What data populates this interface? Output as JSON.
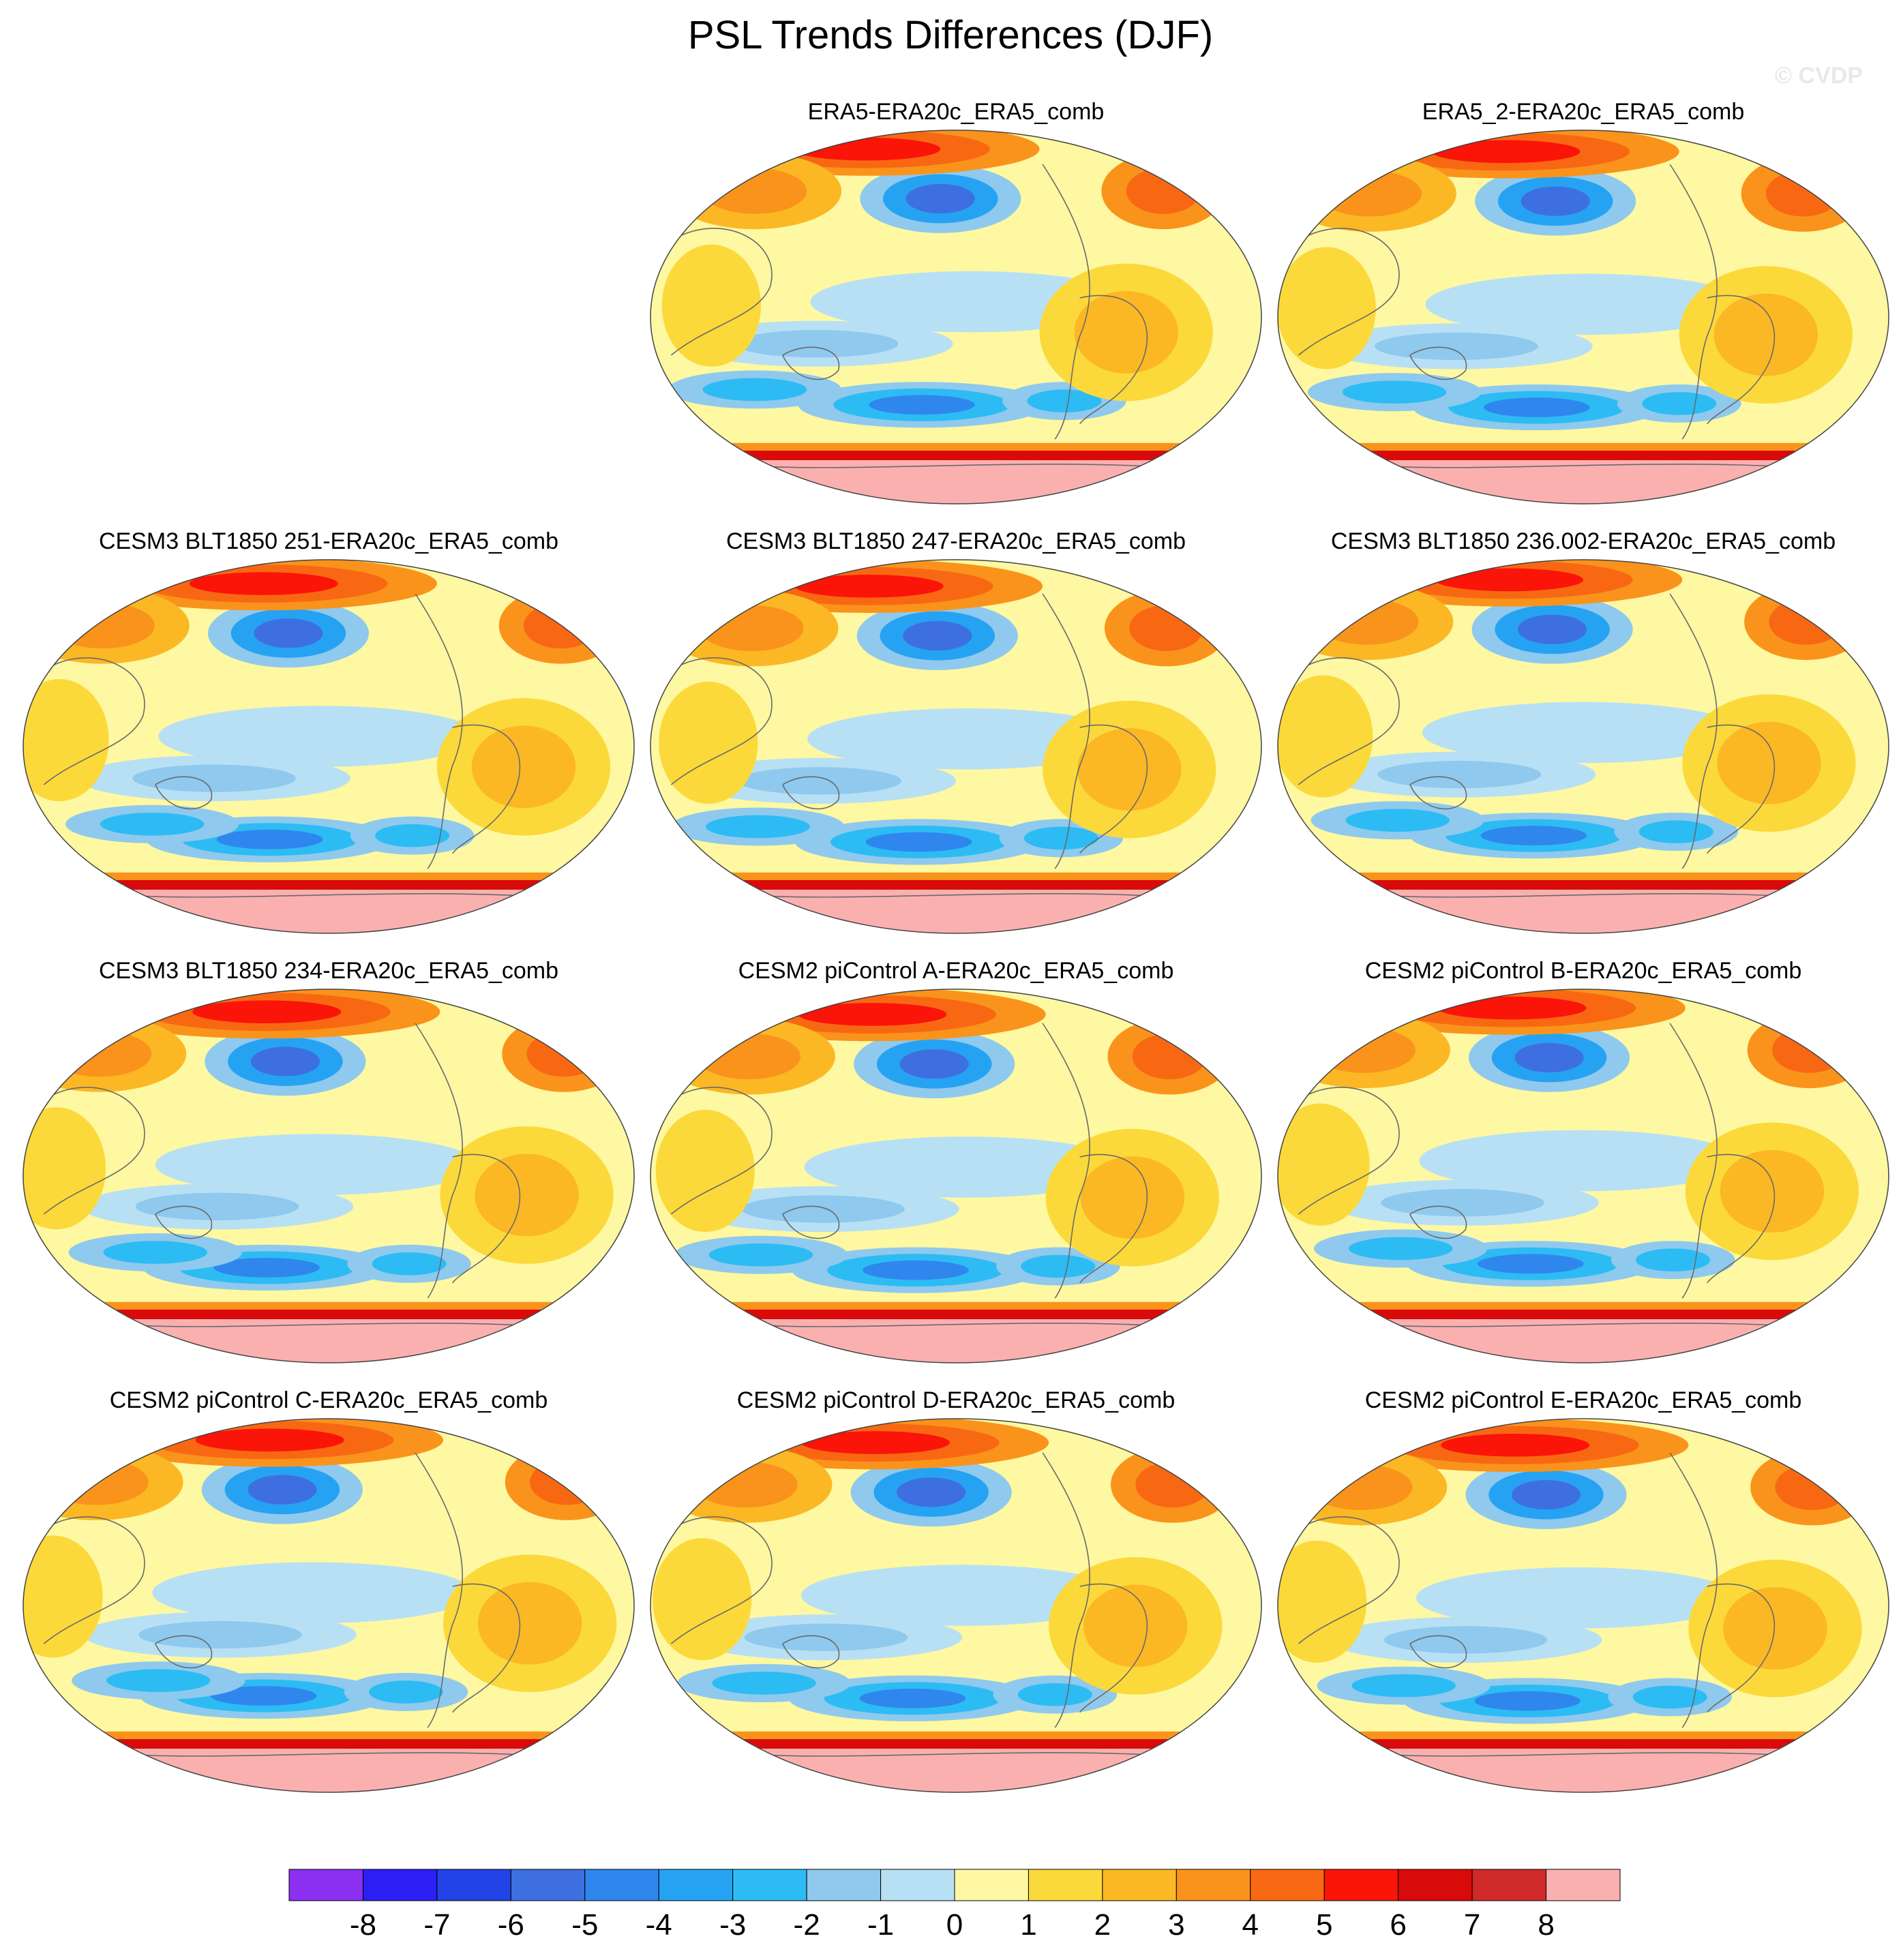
{
  "chart_data": {
    "type": "heatmap",
    "title": "PSL Trends Differences (DJF)",
    "watermark": "© CVDP",
    "colorbar": {
      "ticks": [
        "-8",
        "-7",
        "-6",
        "-5",
        "-4",
        "-3",
        "-2",
        "-1",
        "0",
        "1",
        "2",
        "3",
        "4",
        "5",
        "6",
        "7",
        "8"
      ],
      "colors": [
        "#8b2ff0",
        "#2b1ff5",
        "#2243e6",
        "#3e6fe0",
        "#2f87ee",
        "#25a3f2",
        "#2cbcf3",
        "#8fc9ee",
        "#b8e0f4",
        "#fdf8a1",
        "#fcd93a",
        "#fbb824",
        "#fa931b",
        "#f86813",
        "#fb1408",
        "#d90a0a",
        "#d02a2a",
        "#fbb0b0"
      ]
    },
    "panels": [
      {
        "title": "ERA5-ERA20c_ERA5_comb"
      },
      {
        "title": "ERA5_2-ERA20c_ERA5_comb"
      },
      {
        "title": "CESM3 BLT1850 251-ERA20c_ERA5_comb"
      },
      {
        "title": "CESM3 BLT1850 247-ERA20c_ERA5_comb"
      },
      {
        "title": "CESM3 BLT1850 236.002-ERA20c_ERA5_comb"
      },
      {
        "title": "CESM3 BLT1850 234-ERA20c_ERA5_comb"
      },
      {
        "title": "CESM2 piControl A-ERA20c_ERA5_comb"
      },
      {
        "title": "CESM2 piControl B-ERA20c_ERA5_comb"
      },
      {
        "title": "CESM2 piControl C-ERA20c_ERA5_comb"
      },
      {
        "title": "CESM2 piControl D-ERA20c_ERA5_comb"
      },
      {
        "title": "CESM2 piControl E-ERA20c_ERA5_comb"
      }
    ]
  }
}
